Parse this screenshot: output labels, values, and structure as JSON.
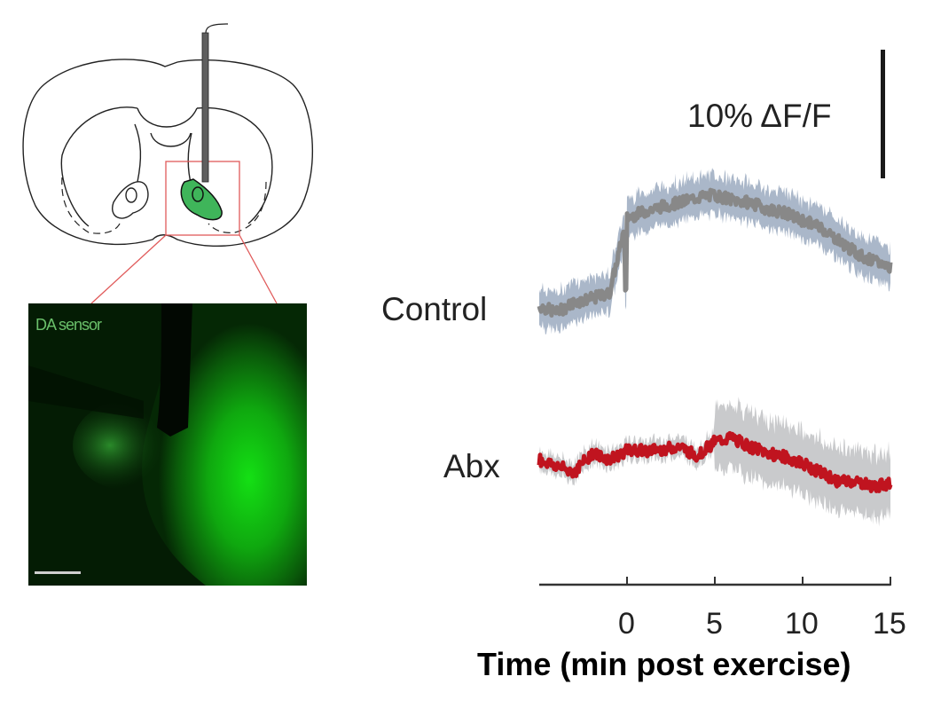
{
  "figure": {
    "micrograph_label": "DA sensor",
    "scale_bar_label": "10% ΔF/F",
    "row_labels": [
      "Control",
      "Abx"
    ]
  },
  "colors": {
    "control_mean": "#888888",
    "control_sem": "#aab7c9",
    "abx_mean": "#c0141f",
    "abx_sem": "#c9cacc",
    "roi_box": "#e05a5a",
    "striatum_fill": "#3fb55a",
    "probe": "#5f5f5f"
  },
  "chart_data": {
    "type": "line",
    "title": "",
    "xlabel": "Time (min post exercise)",
    "ylabel": "",
    "xlim": [
      -5,
      15
    ],
    "x_ticks": [
      0,
      5,
      10,
      15
    ],
    "x_tick_labels": [
      "0",
      "5",
      "10",
      "15"
    ],
    "scale_bar": {
      "value": 10,
      "unit": "% ΔF/F"
    },
    "grid": false,
    "legend": "row labels at left of each trace",
    "x": [
      -5,
      -4,
      -3,
      -2,
      -1,
      0,
      1,
      2,
      3,
      4,
      5,
      6,
      7,
      8,
      9,
      10,
      11,
      12,
      13,
      14,
      15
    ],
    "series": [
      {
        "name": "Control",
        "values": [
          0.0,
          -0.5,
          0.3,
          0.6,
          1.0,
          6.9,
          7.4,
          7.8,
          8.1,
          8.5,
          8.7,
          8.3,
          8.1,
          7.6,
          7.3,
          6.7,
          6.2,
          5.2,
          4.2,
          3.5,
          3.1
        ],
        "sem_halfwidth": 1.2
      },
      {
        "name": "Abx",
        "values": [
          0.0,
          -0.5,
          -1.0,
          0.5,
          0.0,
          0.7,
          0.7,
          0.8,
          1.0,
          0.3,
          1.4,
          1.7,
          1.0,
          0.5,
          0.2,
          -0.3,
          -1.0,
          -1.7,
          -1.7,
          -2.1,
          -1.9
        ],
        "sem_halfwidth_pre": 0.6,
        "sem_halfwidth_post": 2.0
      }
    ]
  }
}
